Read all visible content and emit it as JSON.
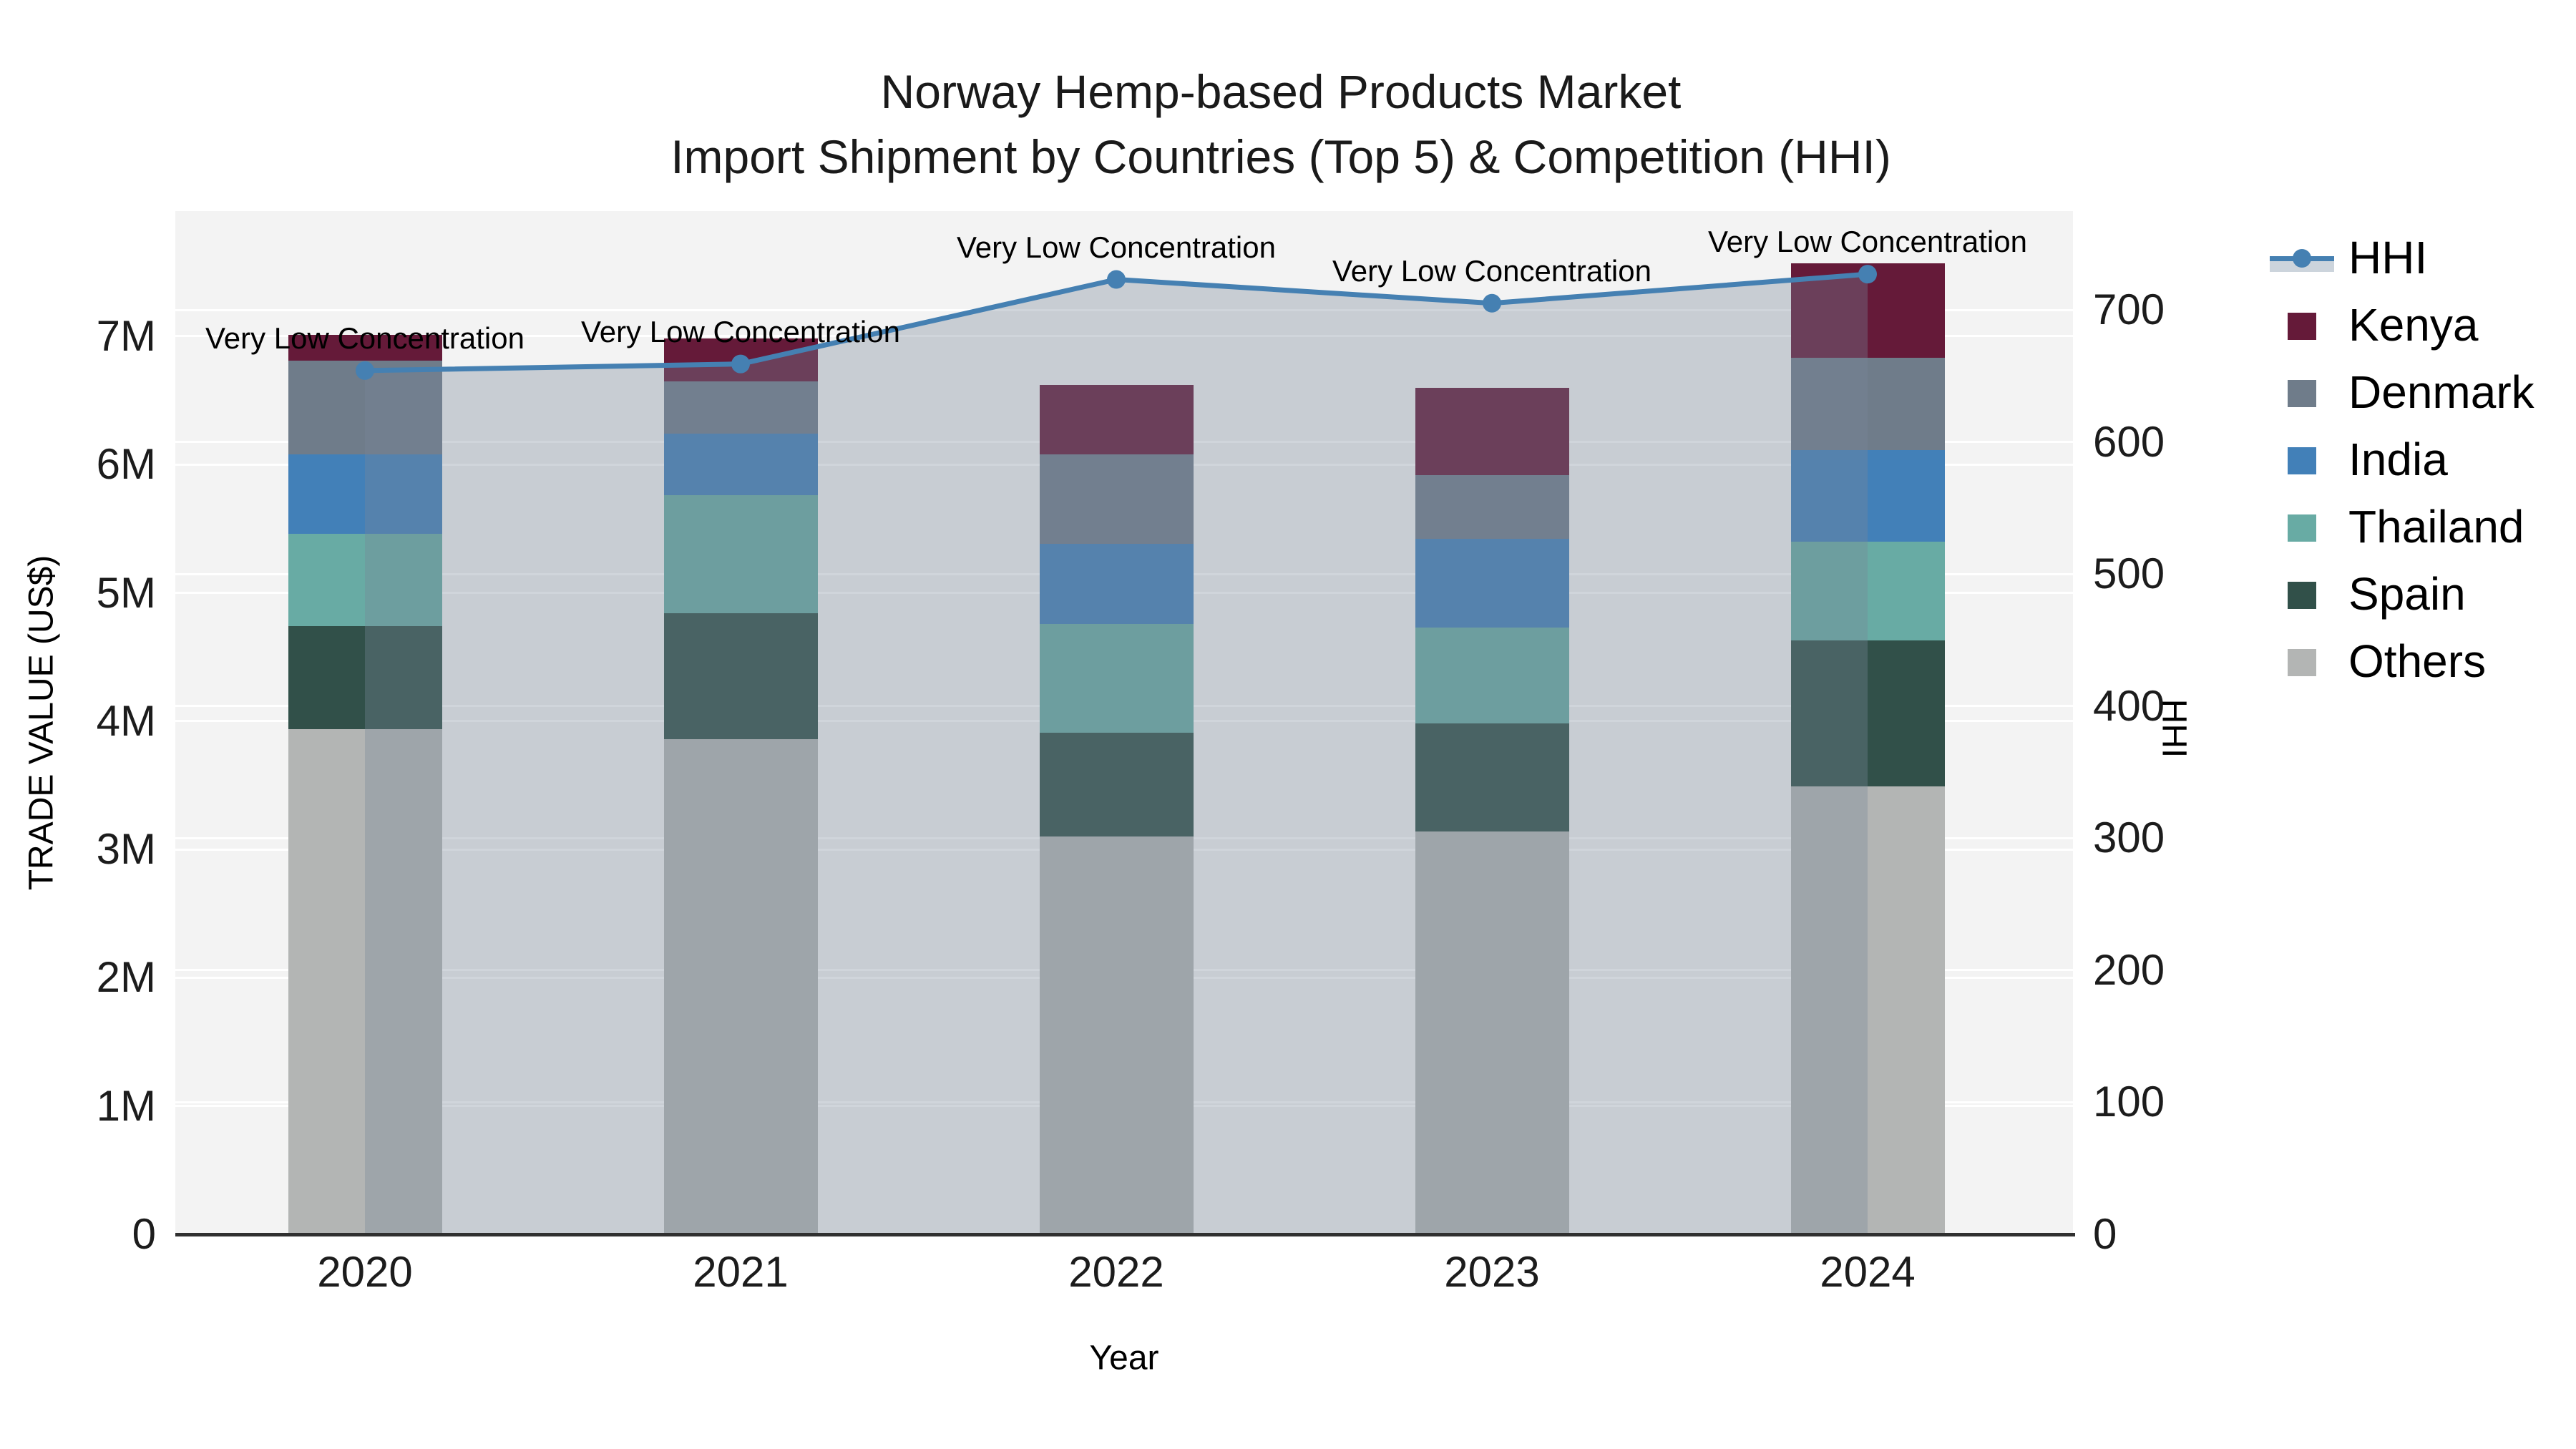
{
  "title": {
    "line1": "Norway Hemp-based Products Market",
    "line2": "Import Shipment by Countries (Top 5) & Competition (HHI)"
  },
  "chart_data": {
    "type": "bar+line",
    "categories": [
      "2020",
      "2021",
      "2022",
      "2023",
      "2024"
    ],
    "stacked": true,
    "bar_value_unit": "million US$",
    "series": [
      {
        "name": "Kenya",
        "color": "#651a39",
        "values": [
          0.2,
          0.33,
          0.54,
          0.68,
          0.74
        ]
      },
      {
        "name": "Denmark",
        "color": "#6f7c8a",
        "values": [
          0.73,
          0.41,
          0.7,
          0.5,
          0.72
        ]
      },
      {
        "name": "India",
        "color": "#4280b8",
        "values": [
          0.62,
          0.48,
          0.62,
          0.69,
          0.71
        ]
      },
      {
        "name": "Thailand",
        "color": "#68aba4",
        "values": [
          0.72,
          0.92,
          0.85,
          0.75,
          0.77
        ]
      },
      {
        "name": "Spain",
        "color": "#315049",
        "values": [
          0.8,
          0.98,
          0.81,
          0.84,
          1.14
        ]
      },
      {
        "name": "Others",
        "color": "#b3b5b4",
        "values": [
          3.94,
          3.86,
          3.1,
          3.14,
          3.49
        ]
      }
    ],
    "stack_order_bottom_to_top": [
      "Others",
      "Spain",
      "Thailand",
      "India",
      "Denmark",
      "Kenya"
    ],
    "bar_totals_millions": [
      7.01,
      6.98,
      6.62,
      6.6,
      7.57
    ],
    "line_series": {
      "name": "HHI",
      "color": "#4580b2",
      "fill_color": "rgba(119,136,153,0.35)",
      "values": [
        654,
        659,
        723,
        705,
        727
      ]
    },
    "annotations": [
      {
        "text": "Very Low Concentration",
        "category": "2020"
      },
      {
        "text": "Very Low Concentration",
        "category": "2021"
      },
      {
        "text": "Very Low Concentration",
        "category": "2022"
      },
      {
        "text": "Very Low Concentration",
        "category": "2023"
      },
      {
        "text": "Very Low Concentration",
        "category": "2024"
      }
    ],
    "xlabel": "Year",
    "ylabel_left": "TRADE VALUE (US$)",
    "ylabel_right": "HHI",
    "yticks_left": [
      "0",
      "1M",
      "2M",
      "3M",
      "4M",
      "5M",
      "6M",
      "7M"
    ],
    "yticks_right": [
      "0",
      "100",
      "200",
      "300",
      "400",
      "500",
      "600",
      "700"
    ],
    "ylim_left_millions": [
      0,
      7.98
    ],
    "ylim_right": [
      0,
      775
    ],
    "grid": true,
    "plot_bg_color": "#f3f3f3",
    "legend_position": "right",
    "legend_entries": [
      "HHI",
      "Kenya",
      "Denmark",
      "India",
      "Thailand",
      "Spain",
      "Others"
    ]
  }
}
